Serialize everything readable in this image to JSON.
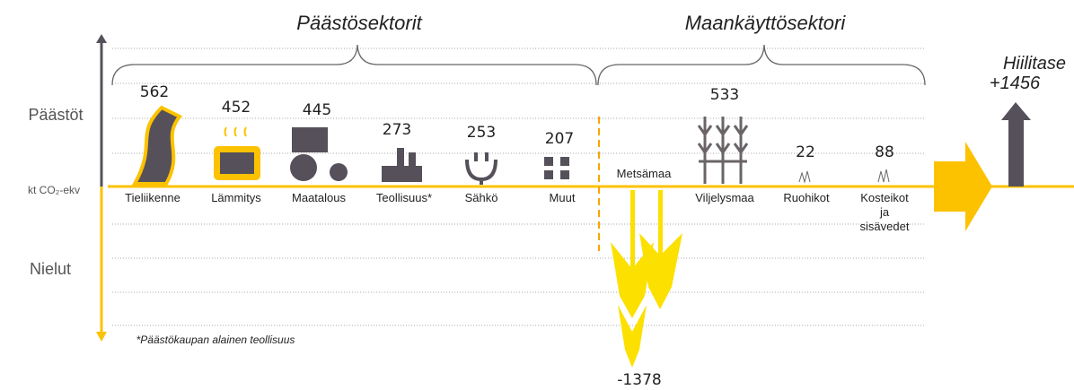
{
  "groups": [
    "Päästösektorit",
    "Maankäyttösektori"
  ],
  "axis": {
    "top": "Päästöt",
    "unit": "kt CO₂-ekv",
    "bottom": "Nielut"
  },
  "sectors": [
    {
      "label": "Tieliikenne",
      "value": 562
    },
    {
      "label": "Lämmitys",
      "value": 452
    },
    {
      "label": "Maatalous",
      "value": 445
    },
    {
      "label": "Teollisuus*",
      "value": 273
    },
    {
      "label": "Sähkö",
      "value": 253
    },
    {
      "label": "Muut",
      "value": 207
    }
  ],
  "land": [
    {
      "label": "Metsämaa",
      "value": -1378
    },
    {
      "label": "Viljelysmaa",
      "value": 533
    },
    {
      "label": "Ruohikot",
      "value": 22
    },
    {
      "label": "Kosteikot ja sisävedet",
      "value": 88
    }
  ],
  "balance": {
    "label": "Hiilitase",
    "value": "+1456"
  },
  "footnote": "*Päästökaupan alainen teollisuus"
}
